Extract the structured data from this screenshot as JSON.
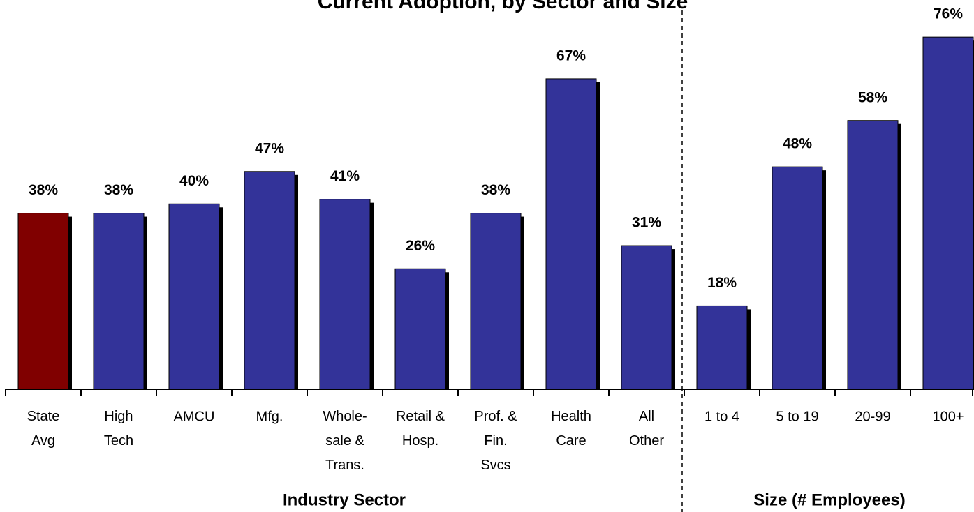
{
  "chart_data": {
    "type": "bar",
    "title": "Current Adoption, by Sector and Size",
    "categories": [
      "State\nAvg",
      "High\nTech",
      "AMCU",
      "Mfg.",
      "Whole-\nsale &\nTrans.",
      "Retail &\nHosp.",
      "Prof. &\nFin.\nSvcs",
      "Health\nCare",
      "All\nOther",
      "1 to 4",
      "5 to 19",
      "20-99",
      "100+"
    ],
    "values": [
      38,
      38,
      40,
      47,
      41,
      26,
      38,
      67,
      31,
      18,
      48,
      58,
      76
    ],
    "value_labels": [
      "38%",
      "38%",
      "40%",
      "47%",
      "41%",
      "26%",
      "38%",
      "67%",
      "31%",
      "18%",
      "48%",
      "58%",
      "76%"
    ],
    "colors": [
      "#800000",
      "#333399",
      "#333399",
      "#333399",
      "#333399",
      "#333399",
      "#333399",
      "#333399",
      "#333399",
      "#333399",
      "#333399",
      "#333399",
      "#333399"
    ],
    "x_groups": [
      "Industry Sector",
      "Size (# Employees)"
    ],
    "ylim": [
      0,
      84
    ]
  }
}
